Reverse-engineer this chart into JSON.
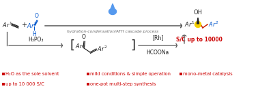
{
  "bg_color": "#ffffff",
  "arrow_color": "#555555",
  "red_color": "#cc0000",
  "blue_color": "#0055cc",
  "gray_color": "#666666",
  "black_color": "#222222",
  "red_chain_color": "#cc2200",
  "bullet_texts_col1": [
    "H₂O as the sole solvent",
    "up to 10 000 S/C"
  ],
  "bullet_texts_col2": [
    "mild conditions & simple operation",
    "one-pot multi-step synthesis"
  ],
  "bullet_texts_col3": [
    "mono-metal catalysis"
  ],
  "top_arrow_label": "hydration-condensation/ATH cascade process",
  "bottom_left_label": "H₃PO₃",
  "bottom_right_label1": "[Rh]",
  "bottom_right_label2": "HCOONa",
  "sc_label": "S/C up to 10000",
  "figsize": [
    3.78,
    1.4
  ],
  "dpi": 100
}
